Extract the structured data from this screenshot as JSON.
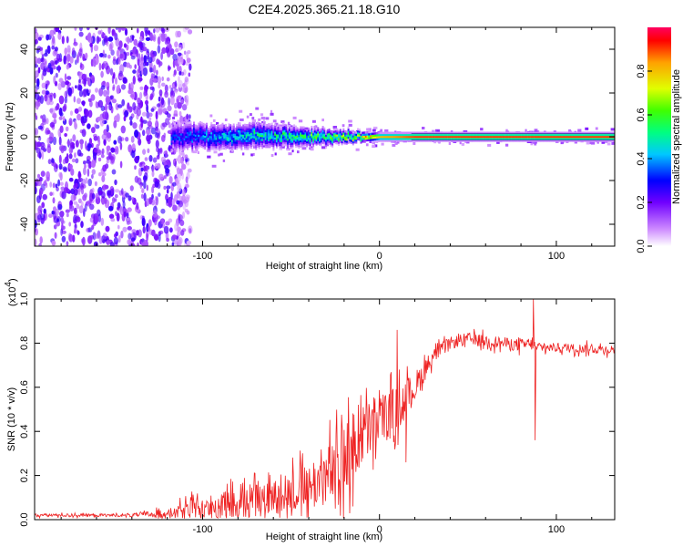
{
  "title": "C2E4.2025.365.21.18.G10",
  "chart_data": [
    {
      "type": "heatmap",
      "name": "spectrogram",
      "xlabel": "Height of straight line (km)",
      "ylabel": "Frequency (Hz)",
      "xlim": [
        -195,
        133
      ],
      "ylim": [
        -50,
        50
      ],
      "x_ticks": [
        -100,
        0,
        100
      ],
      "x_tick_labels": [
        "-100",
        "0",
        "100"
      ],
      "y_ticks": [
        -40,
        -20,
        0,
        20,
        40
      ],
      "y_tick_labels": [
        "-40",
        "-20",
        "0",
        "20",
        "40"
      ],
      "noise_region_x": [
        -195,
        -115
      ],
      "signal": [
        {
          "x": -115,
          "center": 0,
          "halfwidth": 6,
          "amp": 0.3
        },
        {
          "x": -90,
          "center": 0,
          "halfwidth": 5,
          "amp": 0.4
        },
        {
          "x": -70,
          "center": 1,
          "halfwidth": 5,
          "amp": 0.45
        },
        {
          "x": -50,
          "center": 0,
          "halfwidth": 4,
          "amp": 0.5
        },
        {
          "x": -30,
          "center": 0,
          "halfwidth": 3,
          "amp": 0.55
        },
        {
          "x": -10,
          "center": 0,
          "halfwidth": 2,
          "amp": 0.7
        },
        {
          "x": 0,
          "center": 0,
          "halfwidth": 1.5,
          "amp": 0.8
        },
        {
          "x": 20,
          "center": 0,
          "halfwidth": 1.5,
          "amp": 0.9
        },
        {
          "x": 60,
          "center": 0,
          "halfwidth": 1.5,
          "amp": 0.9
        },
        {
          "x": 133,
          "center": 0,
          "halfwidth": 1.5,
          "amp": 0.9
        }
      ],
      "colorbar": {
        "label": "Normalized spectral amplitude",
        "range": [
          0,
          1
        ],
        "ticks": [
          0,
          0.2,
          0.4,
          0.6,
          0.8
        ],
        "tick_labels": [
          "0.0",
          "0.2",
          "0.4",
          "0.6",
          "0.8"
        ],
        "colors": [
          "#ffffff",
          "#cc88ff",
          "#7000ff",
          "#0000ff",
          "#00c8ff",
          "#00ff80",
          "#40ff00",
          "#e0ff00",
          "#ffa000",
          "#ff0000",
          "#ff0060"
        ]
      }
    },
    {
      "type": "line",
      "name": "snr",
      "xlabel": "Height of straight line (km)",
      "ylabel": "SNR (10 * v/v)",
      "ylabel_scale": "(x10",
      "ylabel_scale_exp": "4",
      "ylabel_scale_close": ")",
      "xlim": [
        -195,
        133
      ],
      "ylim": [
        0,
        1.0
      ],
      "x_ticks": [
        -100,
        0,
        100
      ],
      "x_tick_labels": [
        "-100",
        "0",
        "100"
      ],
      "y_ticks": [
        0,
        0.2,
        0.4,
        0.6,
        0.8,
        1.0
      ],
      "y_tick_labels": [
        "0.0",
        "0.2",
        "0.4",
        "0.6",
        "0.8",
        "1.0"
      ],
      "color": "#ee2222",
      "envelope": {
        "x": [
          -195,
          -140,
          -120,
          -100,
          -80,
          -60,
          -40,
          -25,
          -15,
          -10,
          0,
          10,
          20,
          30,
          40,
          50,
          60,
          70,
          80,
          85,
          88,
          90,
          100,
          133
        ],
        "base": [
          0.02,
          0.02,
          0.03,
          0.05,
          0.07,
          0.1,
          0.15,
          0.22,
          0.32,
          0.38,
          0.45,
          0.5,
          0.6,
          0.74,
          0.8,
          0.82,
          0.81,
          0.8,
          0.79,
          0.8,
          0.78,
          0.78,
          0.78,
          0.77
        ],
        "amp": [
          0.01,
          0.01,
          0.03,
          0.08,
          0.1,
          0.11,
          0.16,
          0.22,
          0.25,
          0.2,
          0.18,
          0.15,
          0.1,
          0.05,
          0.04,
          0.04,
          0.04,
          0.04,
          0.04,
          0.04,
          0.03,
          0.03,
          0.03,
          0.03
        ]
      },
      "spikes": [
        {
          "x": -25,
          "y": 0.05
        },
        {
          "x": -15,
          "y": 0.06
        },
        {
          "x": 10,
          "y": 0.86
        },
        {
          "x": 15,
          "y": 0.26
        },
        {
          "x": 87,
          "y": 1.0
        },
        {
          "x": 88,
          "y": 0.36
        }
      ]
    }
  ]
}
